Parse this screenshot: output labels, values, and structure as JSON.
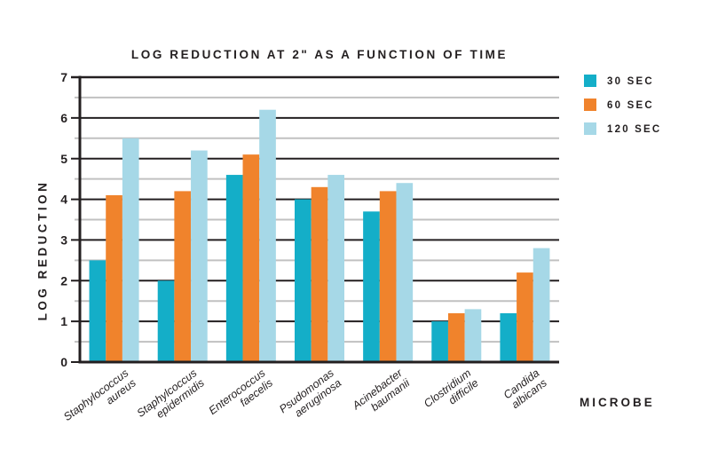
{
  "title": "LOG REDUCTION AT 2\" AS A FUNCTION OF TIME",
  "colors": {
    "ink": "#231F20",
    "minor_grid": "#C1C1C1",
    "background": "#FFFFFF",
    "series_30sec": "#14AEC8",
    "series_60sec": "#F0832C",
    "series_120sec": "#A6D8E7"
  },
  "legend": {
    "items": [
      "30 SEC",
      "60 SEC",
      "120 SEC"
    ]
  },
  "chart_data": {
    "type": "bar",
    "title": "LOG REDUCTION AT 2\" AS A FUNCTION OF TIME",
    "xlabel": "MICROBE",
    "ylabel": "LOG REDUCTION",
    "ylim": [
      0,
      7
    ],
    "yticks": [
      0,
      1,
      2,
      3,
      4,
      5,
      6,
      7
    ],
    "minor_tick_step": 0.5,
    "grid": "horizontal, major dark + minor light",
    "legend_position": "top-right",
    "categories": [
      [
        "Staphylococcus",
        "aureus"
      ],
      [
        "Staphylcoccus",
        "epidermidis"
      ],
      [
        "Enterococcus",
        "faecelis"
      ],
      [
        "Psudomonas",
        "aeruginosa"
      ],
      [
        "Acinebacter",
        "baumanii"
      ],
      [
        "Clostridium",
        "difficile"
      ],
      [
        "Candida",
        "albicans"
      ]
    ],
    "series": [
      {
        "name": "30 SEC",
        "color": "#14AEC8",
        "values": [
          2.5,
          2.0,
          4.6,
          4.0,
          3.7,
          1.0,
          1.2
        ]
      },
      {
        "name": "60 SEC",
        "color": "#F0832C",
        "values": [
          4.1,
          4.2,
          5.1,
          4.3,
          4.2,
          1.2,
          2.2
        ]
      },
      {
        "name": "120 SEC",
        "color": "#A6D8E7",
        "values": [
          5.5,
          5.2,
          6.2,
          4.6,
          4.4,
          1.3,
          2.8
        ]
      }
    ]
  }
}
